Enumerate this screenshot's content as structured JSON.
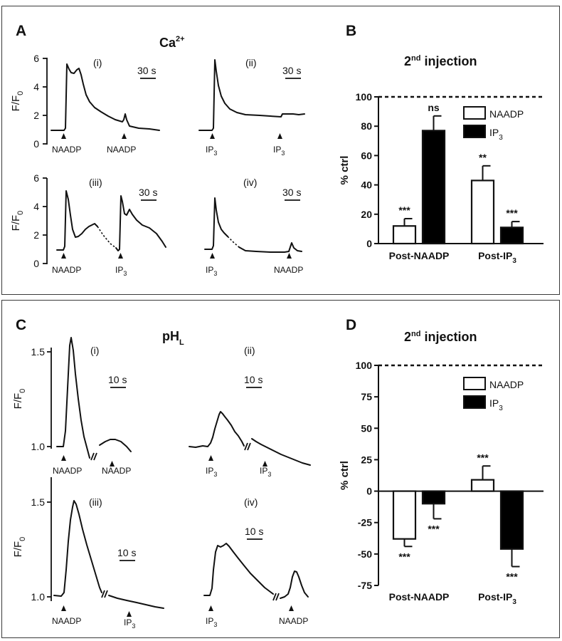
{
  "panels": {
    "A": {
      "label": "A",
      "title_main": "Ca",
      "title_sup": "2+"
    },
    "B": {
      "label": "B",
      "title_sup": "nd",
      "title_pre": "2",
      "title_rest": " injection"
    },
    "C": {
      "label": "C",
      "title_main": "pH",
      "title_sub": "L"
    },
    "D": {
      "label": "D",
      "title_sup": "nd",
      "title_pre": "2",
      "title_rest": " injection"
    }
  },
  "traces": {
    "yaxis_label_main": "F/F",
    "yaxis_label_sub": "0",
    "ca_yticks": [
      "0",
      "2",
      "4",
      "6"
    ],
    "ph_yticks": [
      "1.0",
      "1.5"
    ],
    "ca_scale": "30 s",
    "ph_scale": "10 s",
    "sub_labels": [
      "(i)",
      "(ii)",
      "(iii)",
      "(iv)"
    ],
    "naadp": "NAADP",
    "ip": "IP",
    "ip_sub": "3"
  },
  "chart_data": [
    {
      "type": "bar",
      "panel": "B",
      "ylabel": "% ctrl",
      "ylim": [
        0,
        100
      ],
      "yticks": [
        0,
        20,
        40,
        60,
        80,
        100
      ],
      "control_line": 100,
      "categories": [
        "Post-NAADP",
        "Post-IP3"
      ],
      "category_display": [
        {
          "main": "Post-NAADP",
          "sub": ""
        },
        {
          "main": "Post-IP",
          "sub": "3"
        }
      ],
      "series": [
        {
          "name": "NAADP",
          "fill": "#ffffff",
          "values": [
            12,
            43
          ],
          "errors": [
            5,
            10
          ],
          "sig": [
            "***",
            "**"
          ]
        },
        {
          "name": "IP3",
          "fill": "#000000",
          "values": [
            77,
            11
          ],
          "errors": [
            10,
            4
          ],
          "sig": [
            "ns",
            "***"
          ]
        }
      ],
      "legend_labels": [
        {
          "main": "NAADP",
          "sub": ""
        },
        {
          "main": "IP",
          "sub": "3"
        }
      ],
      "legend_position": "top-right"
    },
    {
      "type": "bar",
      "panel": "D",
      "ylabel": "% ctrl",
      "ylim": [
        -75,
        100
      ],
      "yticks": [
        -75,
        -50,
        -25,
        0,
        25,
        50,
        75,
        100
      ],
      "control_line": 100,
      "categories": [
        "Post-NAADP",
        "Post-IP3"
      ],
      "category_display": [
        {
          "main": "Post-NAADP",
          "sub": ""
        },
        {
          "main": "Post-IP",
          "sub": "3"
        }
      ],
      "series": [
        {
          "name": "NAADP",
          "fill": "#ffffff",
          "values": [
            -38,
            9
          ],
          "errors": [
            6,
            11
          ],
          "sig": [
            "***",
            "***"
          ]
        },
        {
          "name": "IP3",
          "fill": "#000000",
          "values": [
            -10,
            -46
          ],
          "errors": [
            12,
            14
          ],
          "sig": [
            "***",
            "***"
          ]
        }
      ],
      "legend_labels": [
        {
          "main": "NAADP",
          "sub": ""
        },
        {
          "main": "IP",
          "sub": "3"
        }
      ],
      "legend_position": "top-right"
    }
  ]
}
